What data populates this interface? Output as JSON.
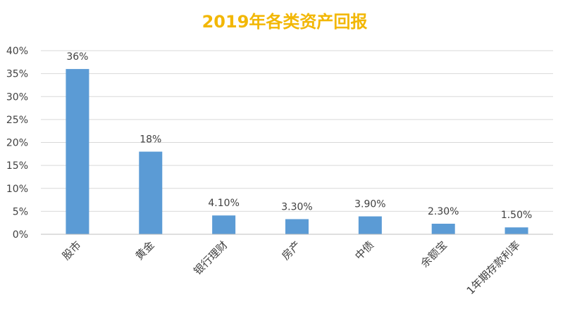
{
  "chart_data": {
    "type": "bar",
    "title": "2019年各类资产回报",
    "categories": [
      "股市",
      "黄金",
      "银行理财",
      "房产",
      "中债",
      "余额宝",
      "1年期存款利率"
    ],
    "values": [
      36,
      18,
      4.1,
      3.3,
      3.9,
      2.3,
      1.5
    ],
    "data_labels": [
      "36%",
      "18%",
      "4.10%",
      "3.30%",
      "3.90%",
      "2.30%",
      "1.50%"
    ],
    "ylim": [
      0,
      40
    ],
    "yticks": [
      0,
      5,
      10,
      15,
      20,
      25,
      30,
      35,
      40
    ],
    "ytick_labels": [
      "0%",
      "5%",
      "10%",
      "15%",
      "20%",
      "25%",
      "30%",
      "35%",
      "40%"
    ],
    "grid": true,
    "legend": "none",
    "colors": {
      "bar": "#5B9BD5",
      "title": "#F2B705",
      "grid": "#D9D9D9",
      "text": "#404040",
      "axis": "#BFBFBF"
    }
  }
}
